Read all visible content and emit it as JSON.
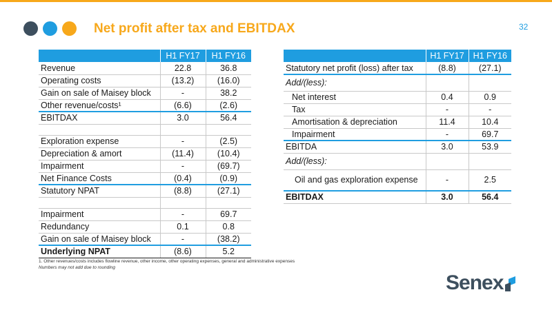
{
  "header": {
    "title": "Net profit after tax and EBITDAX",
    "page_number": "32"
  },
  "colors": {
    "accent_orange": "#f7a81b",
    "accent_blue": "#1f9de0",
    "dot_dark": "#3d4f5e",
    "dot_blue": "#1f9de0",
    "dot_orange": "#f7a81b"
  },
  "left_table": {
    "col1": "H1 FY17",
    "col2": "H1 FY16",
    "rows": [
      {
        "label": "Revenue",
        "v1": "22.8",
        "v2": "36.8"
      },
      {
        "label": "Operating costs",
        "v1": "(13.2)",
        "v2": "(16.0)"
      },
      {
        "label": "Gain on sale of Maisey block",
        "v1": "-",
        "v2": "38.2"
      },
      {
        "label": "Other revenue/costs¹",
        "v1": "(6.6)",
        "v2": "(2.6)"
      },
      {
        "label": "EBITDAX",
        "v1": "3.0",
        "v2": "56.4"
      },
      {
        "label": "Exploration expense",
        "v1": "-",
        "v2": "(2.5)"
      },
      {
        "label": "Depreciation & amort",
        "v1": "(11.4)",
        "v2": "(10.4)"
      },
      {
        "label": "Impairment",
        "v1": "-",
        "v2": "(69.7)"
      },
      {
        "label": "Net Finance Costs",
        "v1": "(0.4)",
        "v2": "(0.9)"
      },
      {
        "label": "Statutory NPAT",
        "v1": "(8.8)",
        "v2": "(27.1)"
      },
      {
        "label": "Impairment",
        "v1": "-",
        "v2": "69.7"
      },
      {
        "label": "Redundancy",
        "v1": "0.1",
        "v2": "0.8"
      },
      {
        "label": "Gain on sale of Maisey block",
        "v1": "-",
        "v2": "(38.2)"
      },
      {
        "label": "Underlying NPAT",
        "v1": "(8.6)",
        "v2": "5.2"
      }
    ]
  },
  "right_table": {
    "col1": "H1 FY17",
    "col2": "H1 FY16",
    "rows": [
      {
        "label": "Statutory net profit (loss) after tax",
        "v1": "(8.8)",
        "v2": "(27.1)"
      },
      {
        "label": "Add/(less):",
        "v1": "",
        "v2": ""
      },
      {
        "label": "Net interest",
        "v1": "0.4",
        "v2": "0.9"
      },
      {
        "label": "Tax",
        "v1": "-",
        "v2": "-"
      },
      {
        "label": "Amortisation & depreciation",
        "v1": "11.4",
        "v2": "10.4"
      },
      {
        "label": "Impairment",
        "v1": "-",
        "v2": "69.7"
      },
      {
        "label": "EBITDA",
        "v1": "3.0",
        "v2": "53.9"
      },
      {
        "label": "Add/(less):",
        "v1": "",
        "v2": ""
      },
      {
        "label": "Oil and gas exploration expense",
        "v1": "-",
        "v2": "2.5"
      },
      {
        "label": "EBITDAX",
        "v1": "3.0",
        "v2": "56.4"
      }
    ]
  },
  "footnotes": {
    "note1": "1. Other revenues/costs includes flowline revenue, other income, other operating expenses, general and administrative expenses",
    "note2": "Numbers may not add due to rounding"
  },
  "logo": {
    "text": "Senex",
    "icon": "senex-mark-icon"
  }
}
